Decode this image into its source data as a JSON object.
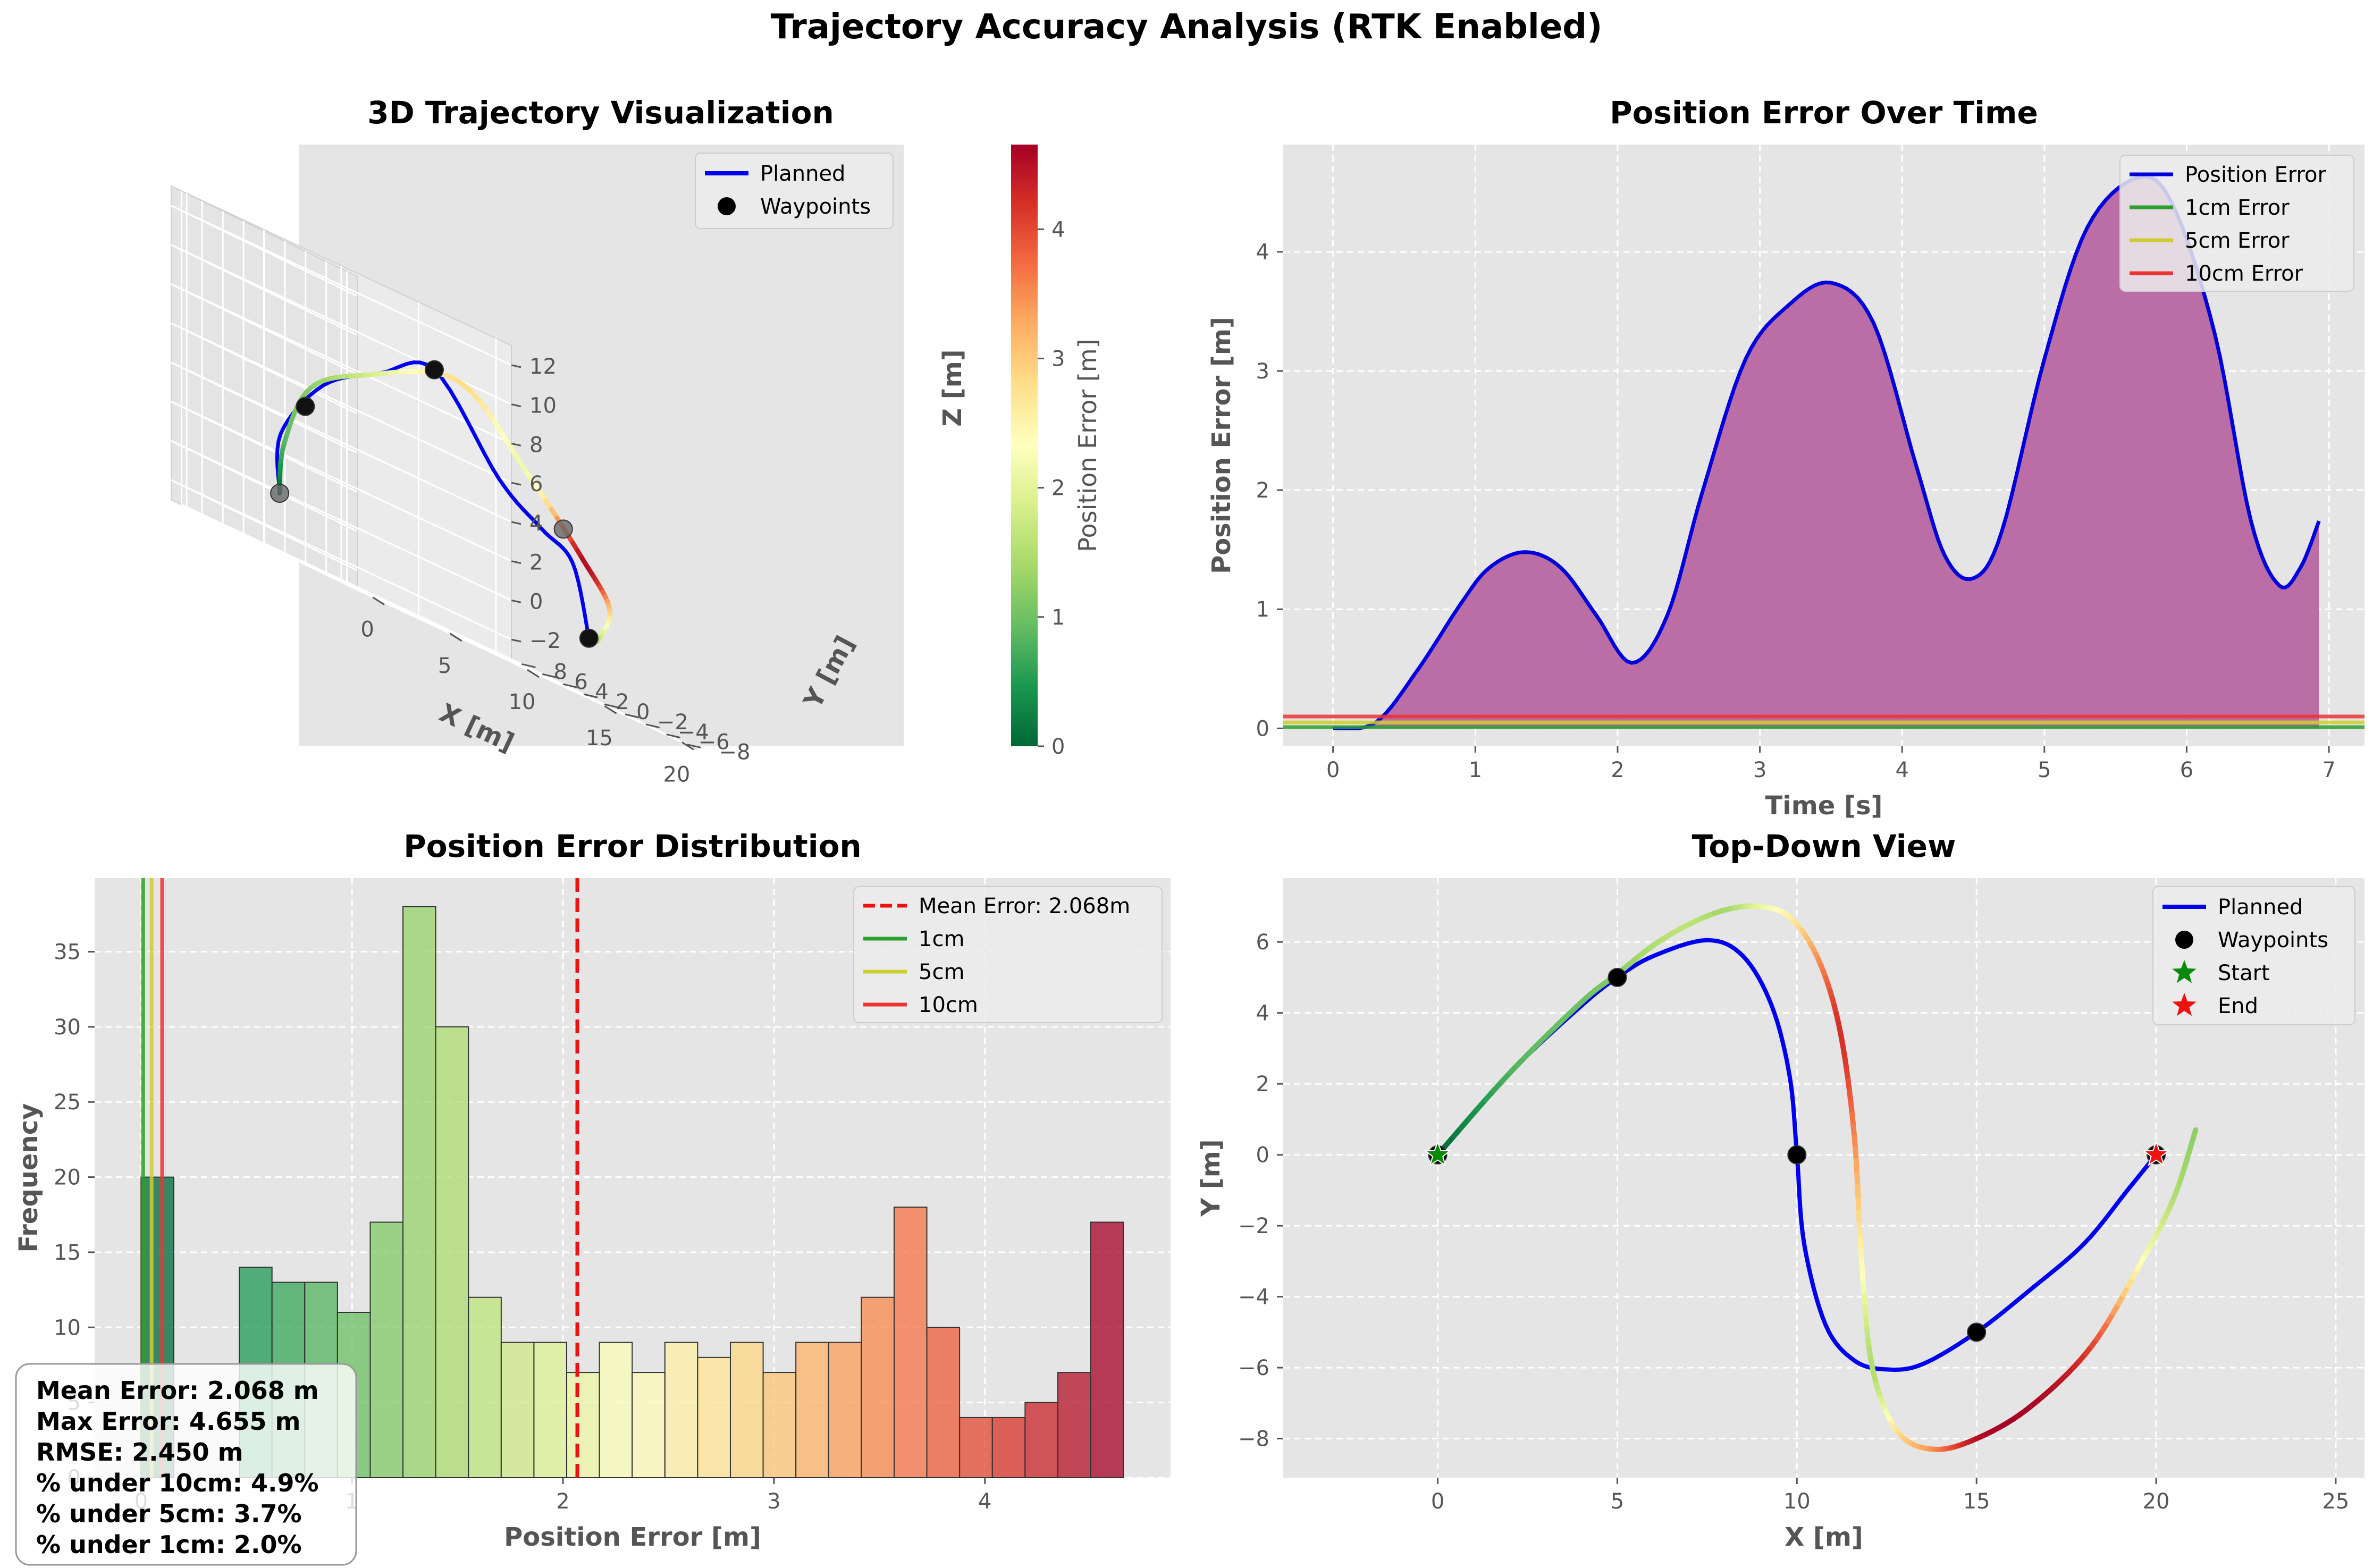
{
  "figure": {
    "title": "Trajectory Accuracy Analysis (RTK Enabled)"
  },
  "chart_data": [
    {
      "id": "traj3d",
      "type": "line",
      "title": "3D Trajectory Visualization",
      "xlabel": "X [m]",
      "ylabel": "Y [m]",
      "zlabel": "Z [m]",
      "xlim": [
        -1,
        21
      ],
      "ylim": [
        -9,
        9
      ],
      "zlim": [
        -3,
        13
      ],
      "x_ticks": [
        0,
        5,
        10,
        15,
        20
      ],
      "y_ticks": [
        -8,
        -6,
        -4,
        -2,
        0,
        2,
        4,
        6,
        8
      ],
      "z_ticks": [
        -2,
        0,
        2,
        4,
        6,
        8,
        10,
        12
      ],
      "x_tick_labels": [
        "0",
        "5",
        "10",
        "15",
        "20"
      ],
      "y_tick_labels": [
        "−8",
        "−6",
        "−4",
        "−2",
        "0",
        "2",
        "4",
        "6",
        "8"
      ],
      "z_tick_labels": [
        "−2",
        "0",
        "2",
        "4",
        "6",
        "8",
        "10",
        "12"
      ],
      "legend": [
        "Planned",
        "Waypoints"
      ],
      "legend_position": "top-right",
      "colorbar": {
        "label": "Position Error [m]",
        "range": [
          0,
          4.655
        ],
        "ticks": [
          0,
          1,
          2,
          3,
          4
        ],
        "colormap": [
          "#006837",
          "#1a9850",
          "#66bd63",
          "#a6d96a",
          "#d9ef8b",
          "#ffffbf",
          "#fee08b",
          "#fdae61",
          "#f46d43",
          "#d73027",
          "#a50026"
        ]
      },
      "waypoints": [
        [
          0,
          0,
          0
        ],
        [
          5,
          5,
          5
        ],
        [
          10,
          0,
          10
        ],
        [
          15,
          -5,
          5
        ],
        [
          20,
          0,
          0
        ]
      ],
      "planned": [
        [
          0,
          0,
          0
        ],
        [
          3,
          4.4,
          3
        ],
        [
          6.5,
          5.5,
          6.5
        ],
        [
          8.5,
          3,
          8.5
        ],
        [
          10,
          0,
          10
        ],
        [
          11.2,
          -4.5,
          6
        ],
        [
          13,
          -5.9,
          4.5
        ],
        [
          16,
          -4.4,
          3.5
        ],
        [
          20,
          0,
          0
        ]
      ],
      "actual": [
        [
          0,
          0,
          0
        ],
        [
          3,
          4.1,
          2.5
        ],
        [
          6.5,
          6.8,
          6
        ],
        [
          9.5,
          6,
          8
        ],
        [
          11.5,
          0,
          10
        ],
        [
          12,
          -6,
          7
        ],
        [
          14,
          -8.3,
          4
        ],
        [
          18,
          -5,
          2
        ],
        [
          21,
          0.7,
          0
        ]
      ],
      "actual_errors": [
        0,
        0.8,
        1.2,
        1.8,
        2.8,
        2.2,
        4.5,
        3.0,
        1.5
      ]
    },
    {
      "id": "error_time",
      "type": "area",
      "title": "Position Error Over Time",
      "xlabel": "Time [s]",
      "ylabel": "Position Error [m]",
      "xlim": [
        -0.35,
        7.25
      ],
      "ylim": [
        -0.15,
        4.9
      ],
      "x_ticks": [
        0,
        1,
        2,
        3,
        4,
        5,
        6,
        7
      ],
      "y_ticks": [
        0,
        1,
        2,
        3,
        4
      ],
      "grid": true,
      "legend_position": "top-right",
      "series": [
        {
          "name": "Position Error",
          "color": "#0000dd",
          "x": [
            0,
            0.3,
            0.6,
            0.9,
            1.1,
            1.35,
            1.6,
            1.85,
            2.1,
            2.35,
            2.6,
            2.9,
            3.2,
            3.5,
            3.8,
            4.1,
            4.3,
            4.5,
            4.7,
            5.0,
            5.3,
            5.65,
            5.9,
            6.2,
            6.45,
            6.65,
            6.8,
            6.93
          ],
          "y": [
            0,
            0.05,
            0.5,
            1.05,
            1.35,
            1.48,
            1.35,
            0.95,
            0.55,
            0.95,
            2.0,
            3.1,
            3.55,
            3.74,
            3.4,
            2.2,
            1.45,
            1.26,
            1.65,
            3.1,
            4.2,
            4.62,
            4.4,
            3.3,
            1.75,
            1.2,
            1.35,
            1.74
          ]
        },
        {
          "name": "1cm Error",
          "color": "#2ca02c",
          "value": 0.01
        },
        {
          "name": "5cm Error",
          "color": "#cccc33",
          "value": 0.05
        },
        {
          "name": "10cm Error",
          "color": "#ee3333",
          "value": 0.1
        }
      ]
    },
    {
      "id": "error_hist",
      "type": "bar",
      "title": "Position Error Distribution",
      "xlabel": "Position Error [m]",
      "ylabel": "Frequency",
      "xlim": [
        -0.22,
        4.88
      ],
      "ylim": [
        0,
        39.9
      ],
      "x_ticks": [
        0,
        1,
        2,
        3,
        4
      ],
      "x_tick_labels": [
        "0",
        "1",
        "2",
        "3",
        "4"
      ],
      "y_ticks": [
        0,
        5,
        10,
        15,
        20,
        25,
        30,
        35
      ],
      "grid": true,
      "legend_position": "top-right",
      "bin_start": 0,
      "bin_width": 0.1552,
      "counts": [
        20,
        0,
        0,
        14,
        13,
        13,
        11,
        17,
        38,
        30,
        12,
        9,
        9,
        7,
        9,
        7,
        9,
        8,
        9,
        7,
        9,
        9,
        12,
        18,
        10,
        4,
        4,
        5,
        7,
        17
      ],
      "mean": 2.068,
      "lines": [
        {
          "name": "Mean Error: 2.068m",
          "value": 2.068,
          "color": "#ee1111",
          "dashed": true
        },
        {
          "name": "1cm",
          "value": 0.01,
          "color": "#2ca02c"
        },
        {
          "name": "5cm",
          "value": 0.05,
          "color": "#cccc33"
        },
        {
          "name": "10cm",
          "value": 0.1,
          "color": "#ee3333"
        }
      ],
      "stats": [
        "Mean Error: 2.068 m",
        "Max Error: 4.655 m",
        "RMSE: 2.450 m",
        "% under 10cm: 4.9%",
        "% under 5cm: 3.7%",
        "% under 1cm: 2.0%"
      ]
    },
    {
      "id": "topdown",
      "type": "line",
      "title": "Top-Down View",
      "xlabel": "X [m]",
      "ylabel": "Y [m]",
      "xlim": [
        -4.3,
        25.8
      ],
      "ylim": [
        -9.1,
        7.8
      ],
      "x_ticks": [
        0,
        5,
        10,
        15,
        20,
        25
      ],
      "y_ticks": [
        -8,
        -6,
        -4,
        -2,
        0,
        2,
        4,
        6
      ],
      "y_tick_labels": [
        "−8",
        "−6",
        "−4",
        "−2",
        "0",
        "2",
        "4",
        "6"
      ],
      "grid": true,
      "legend_position": "top-right",
      "legend": [
        "Planned",
        "Waypoints",
        "Start",
        "End"
      ],
      "waypoints": [
        [
          0,
          0
        ],
        [
          5,
          5
        ],
        [
          10,
          0
        ],
        [
          15,
          -5
        ],
        [
          20,
          0
        ]
      ],
      "start": [
        0,
        0
      ],
      "end": [
        20,
        0
      ],
      "planned": [
        [
          0,
          0
        ],
        [
          2,
          2.3
        ],
        [
          4,
          4.2
        ],
        [
          5,
          5
        ],
        [
          6,
          5.6
        ],
        [
          7.5,
          6.05
        ],
        [
          8.5,
          5.6
        ],
        [
          9.3,
          4.2
        ],
        [
          9.8,
          2.2
        ],
        [
          10,
          0
        ],
        [
          10.2,
          -2.5
        ],
        [
          10.8,
          -4.8
        ],
        [
          11.6,
          -5.8
        ],
        [
          12.5,
          -6.05
        ],
        [
          13.5,
          -5.9
        ],
        [
          15,
          -5
        ],
        [
          16.5,
          -3.8
        ],
        [
          18,
          -2.5
        ],
        [
          19.2,
          -1
        ],
        [
          20,
          0
        ]
      ],
      "actual": [
        [
          0,
          0
        ],
        [
          2,
          2.3
        ],
        [
          4,
          4.3
        ],
        [
          5,
          5.1
        ],
        [
          6,
          5.9
        ],
        [
          7,
          6.5
        ],
        [
          8,
          6.9
        ],
        [
          8.9,
          7.0
        ],
        [
          9.8,
          6.7
        ],
        [
          10.6,
          5.5
        ],
        [
          11.2,
          3.5
        ],
        [
          11.6,
          0.5
        ],
        [
          11.8,
          -3
        ],
        [
          12.1,
          -6
        ],
        [
          12.8,
          -7.8
        ],
        [
          13.8,
          -8.3
        ],
        [
          15,
          -8
        ],
        [
          16.5,
          -7.1
        ],
        [
          18.2,
          -5.4
        ],
        [
          19.6,
          -3
        ],
        [
          20.5,
          -1.2
        ],
        [
          21.1,
          0.7
        ]
      ],
      "actual_errors": [
        0,
        0.8,
        1.0,
        1.2,
        1.5,
        1.6,
        1.4,
        2.0,
        2.6,
        3.5,
        4.2,
        3.5,
        2.4,
        1.5,
        2.8,
        3.5,
        4.5,
        4.6,
        4.0,
        2.3,
        1.5,
        1.2
      ]
    }
  ]
}
